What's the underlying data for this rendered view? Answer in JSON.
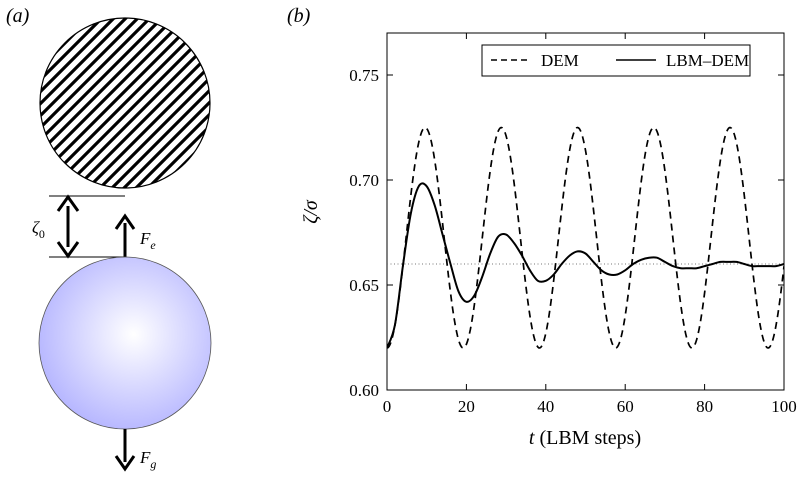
{
  "panels": {
    "a_label": "(a)",
    "b_label": "(b)"
  },
  "diagram": {
    "gap_symbol": "ζ",
    "gap_subscript": "0",
    "force_e_symbol": "F",
    "force_e_subscript": "e",
    "force_g_symbol": "F",
    "force_g_subscript": "g",
    "colors": {
      "upper_particle_hatch": "#000000",
      "lower_particle_fill": "#b3b3ff"
    }
  },
  "chart_data": {
    "type": "line",
    "xlabel_italic": "t",
    "xlabel_rest": " (LBM steps)",
    "ylabel": "ζ/σ",
    "xlim": [
      0,
      100
    ],
    "ylim": [
      0.6,
      0.77
    ],
    "xticks": [
      0,
      20,
      40,
      60,
      80,
      100
    ],
    "xtick_labels": [
      "0",
      "20",
      "40",
      "60",
      "80",
      "100"
    ],
    "yticks": [
      0.6,
      0.65,
      0.7,
      0.75
    ],
    "ytick_labels": [
      "0.60",
      "0.65",
      "0.70",
      "0.75"
    ],
    "grid": false,
    "legend_position": "top-center",
    "reference_line": {
      "y": 0.66,
      "style": "dotted"
    },
    "series": [
      {
        "name": "DEM",
        "style": "dashed",
        "equilibrium": 0.6725,
        "amplitude": 0.0525,
        "period": 19.2,
        "x": [
          0,
          9.6,
          19.2,
          28.8,
          38.4,
          48,
          57.6,
          67.2,
          76.8,
          86.4,
          96,
          100
        ],
        "y": [
          0.62,
          0.725,
          0.62,
          0.725,
          0.62,
          0.725,
          0.62,
          0.725,
          0.62,
          0.725,
          0.62,
          0.661
        ]
      },
      {
        "name": "LBM–DEM",
        "style": "solid",
        "x": [
          0,
          2,
          4,
          6,
          8,
          10,
          12,
          14,
          16,
          18,
          20,
          22,
          24,
          26,
          28,
          30,
          32,
          34,
          36,
          38,
          40,
          42,
          44,
          46,
          48,
          50,
          52,
          54,
          56,
          58,
          60,
          62,
          64,
          66,
          68,
          70,
          72,
          74,
          76,
          78,
          80,
          82,
          84,
          86,
          88,
          90,
          92,
          94,
          96,
          98,
          100
        ],
        "y": [
          0.62,
          0.631,
          0.659,
          0.684,
          0.697,
          0.697,
          0.688,
          0.674,
          0.66,
          0.647,
          0.642,
          0.645,
          0.654,
          0.665,
          0.673,
          0.674,
          0.67,
          0.664,
          0.657,
          0.652,
          0.652,
          0.655,
          0.66,
          0.664,
          0.666,
          0.665,
          0.661,
          0.657,
          0.655,
          0.655,
          0.657,
          0.66,
          0.662,
          0.663,
          0.663,
          0.661,
          0.659,
          0.658,
          0.658,
          0.658,
          0.659,
          0.66,
          0.661,
          0.661,
          0.661,
          0.66,
          0.659,
          0.659,
          0.659,
          0.659,
          0.66
        ]
      }
    ]
  }
}
